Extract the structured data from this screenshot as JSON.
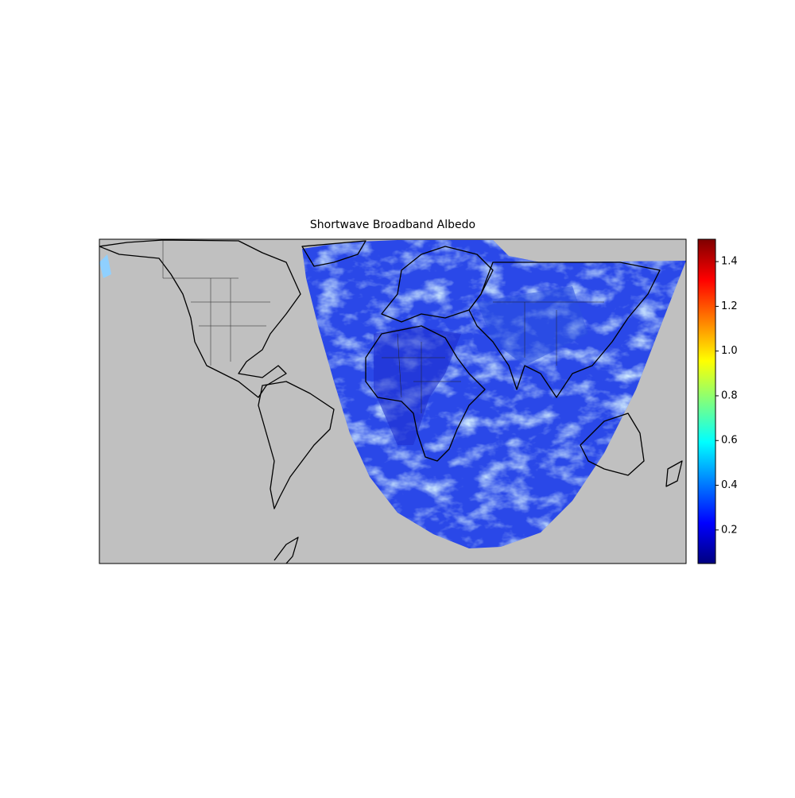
{
  "map": {
    "title": "Shortwave Broadband Albedo",
    "colorbar": {
      "colormap": "jet",
      "lim": [
        0.05,
        1.5
      ],
      "ticks": [
        0.2,
        0.4,
        0.6,
        0.8,
        {
          "value": 1,
          "label": "1.0"
        },
        1.2,
        1.4
      ]
    }
  }
}
